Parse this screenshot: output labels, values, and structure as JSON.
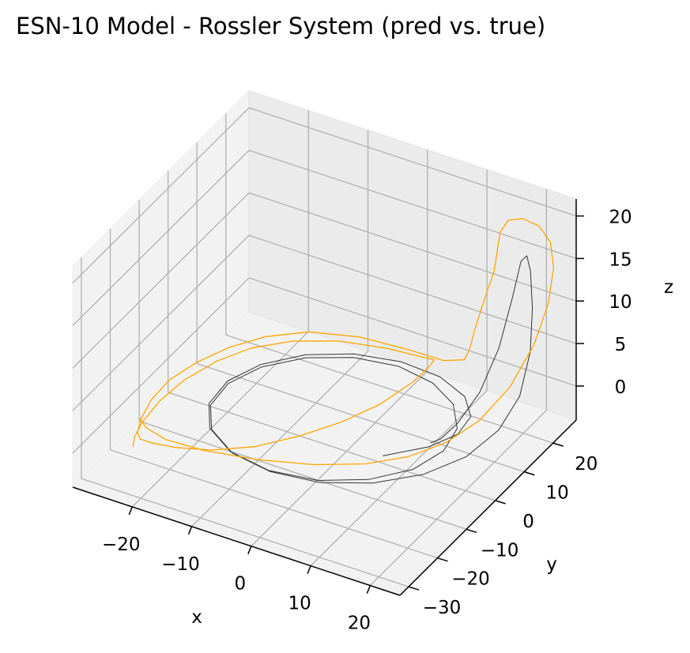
{
  "chart_data": {
    "type": "line3d",
    "title": "ESN-10 Model - Rossler System (pred vs. true)",
    "xlabel": "x",
    "ylabel": "y",
    "zlabel": "z",
    "xlim": [
      -30,
      25
    ],
    "ylim": [
      -33,
      28
    ],
    "zlim": [
      -4,
      22
    ],
    "xticks": [
      -20,
      -10,
      0,
      10,
      20
    ],
    "xtick_labels": [
      "−20",
      "−10",
      "0",
      "10",
      "20"
    ],
    "yticks": [
      -30,
      -20,
      -10,
      0,
      10,
      20
    ],
    "ytick_labels": [
      "−30",
      "−20",
      "−10",
      "0",
      "10",
      "20"
    ],
    "zticks": [
      0,
      5,
      10,
      15,
      20
    ],
    "ztick_labels": [
      "0",
      "5",
      "10",
      "15",
      "20"
    ],
    "grid": true,
    "series": [
      {
        "role": "true",
        "color": "#333333",
        "points": [
          [
            10.0,
            -8.0,
            0.5
          ],
          [
            14.6,
            -1.4,
            0.4
          ],
          [
            16.5,
            4.5,
            0.3
          ],
          [
            15.8,
            10.5,
            0.2
          ],
          [
            12.4,
            15.4,
            0.1
          ],
          [
            6.8,
            18.4,
            0.1
          ],
          [
            0.0,
            19.0,
            0.1
          ],
          [
            -7.0,
            17.0,
            0.1
          ],
          [
            -13.0,
            12.6,
            0.1
          ],
          [
            -17.4,
            6.2,
            0.1
          ],
          [
            -19.5,
            -1.0,
            0.1
          ],
          [
            -19.0,
            -8.5,
            0.1
          ],
          [
            -15.8,
            -14.8,
            0.1
          ],
          [
            -10.2,
            -19.2,
            0.1
          ],
          [
            -3.0,
            -20.8,
            0.1
          ],
          [
            4.6,
            -19.4,
            0.2
          ],
          [
            11.0,
            -15.0,
            0.3
          ],
          [
            15.3,
            -8.5,
            0.3
          ],
          [
            16.8,
            -1.0,
            0.3
          ],
          [
            15.6,
            6.2,
            0.2
          ],
          [
            12.0,
            12.2,
            0.2
          ],
          [
            6.6,
            16.2,
            0.1
          ],
          [
            0.2,
            17.6,
            0.1
          ],
          [
            -6.6,
            16.0,
            0.1
          ],
          [
            -12.6,
            11.8,
            0.1
          ],
          [
            -17.0,
            5.6,
            0.1
          ],
          [
            -19.1,
            -1.6,
            0.1
          ],
          [
            -18.6,
            -8.8,
            0.1
          ],
          [
            -15.4,
            -15.0,
            0.1
          ],
          [
            -9.8,
            -19.4,
            0.1
          ],
          [
            -2.6,
            -21.2,
            0.2
          ],
          [
            5.2,
            -20.0,
            0.3
          ],
          [
            12.2,
            -16.0,
            0.5
          ],
          [
            17.8,
            -10.0,
            0.8
          ],
          [
            21.5,
            -2.8,
            1.3
          ],
          [
            23.4,
            4.5,
            2.4
          ],
          [
            24.0,
            10.5,
            4.5
          ],
          [
            23.5,
            15.2,
            8.0
          ],
          [
            22.5,
            18.0,
            12.0
          ],
          [
            21.4,
            19.6,
            15.5
          ],
          [
            20.6,
            20.0,
            17.0
          ],
          [
            20.0,
            19.2,
            16.5
          ],
          [
            19.8,
            16.6,
            13.0
          ],
          [
            19.6,
            12.4,
            8.5
          ],
          [
            19.0,
            7.0,
            5.0
          ],
          [
            18.0,
            1.5,
            3.0
          ],
          [
            17.0,
            -2.4,
            2.2
          ],
          [
            16.0,
            -3.8,
            2.0
          ]
        ]
      },
      {
        "role": "pred",
        "color": "#ffa500",
        "points": [
          [
            -26.0,
            -18.0,
            0.0
          ],
          [
            -24.0,
            -20.0,
            0.0
          ],
          [
            -20.0,
            -21.4,
            0.0
          ],
          [
            -14.0,
            -21.0,
            0.0
          ],
          [
            -6.0,
            -18.8,
            0.0
          ],
          [
            2.0,
            -15.4,
            0.1
          ],
          [
            8.6,
            -11.2,
            0.3
          ],
          [
            13.6,
            -6.4,
            0.7
          ],
          [
            17.4,
            -1.2,
            1.5
          ],
          [
            20.4,
            4.0,
            3.0
          ],
          [
            22.8,
            9.6,
            5.6
          ],
          [
            24.4,
            14.6,
            9.2
          ],
          [
            25.0,
            18.4,
            13.0
          ],
          [
            24.6,
            21.0,
            16.2
          ],
          [
            23.4,
            22.4,
            18.4
          ],
          [
            21.4,
            22.6,
            19.8
          ],
          [
            19.0,
            21.8,
            20.4
          ],
          [
            17.2,
            20.6,
            20.2
          ],
          [
            16.6,
            19.0,
            19.2
          ],
          [
            16.8,
            17.8,
            18.0
          ],
          [
            17.2,
            16.4,
            17.2
          ],
          [
            17.6,
            14.8,
            16.2
          ],
          [
            17.2,
            13.4,
            14.4
          ],
          [
            16.4,
            12.6,
            12.0
          ],
          [
            15.4,
            12.6,
            9.5
          ],
          [
            14.4,
            13.0,
            7.0
          ],
          [
            13.4,
            13.2,
            5.4
          ],
          [
            10.0,
            13.0,
            4.6
          ],
          [
            4.0,
            13.5,
            4.3
          ],
          [
            -4.0,
            12.8,
            4.2
          ],
          [
            -11.0,
            9.8,
            4.2
          ],
          [
            -16.0,
            5.0,
            4.1
          ],
          [
            -19.4,
            -0.8,
            4.0
          ],
          [
            -22.0,
            -6.6,
            3.6
          ],
          [
            -24.4,
            -11.0,
            2.5
          ],
          [
            -26.0,
            -14.0,
            0.8
          ],
          [
            -26.6,
            -16.4,
            -0.8
          ],
          [
            -26.2,
            -18.4,
            -1.6
          ],
          [
            -24.6,
            -20.8,
            -1.2
          ],
          [
            -22.0,
            -22.4,
            -0.5
          ],
          [
            -18.0,
            -22.2,
            -0.2
          ],
          [
            -13.0,
            -20.0,
            -0.1
          ],
          [
            -8.0,
            -15.4,
            -0.1
          ],
          [
            -3.6,
            -9.0,
            0.0
          ],
          [
            0.0,
            -2.0,
            0.1
          ],
          [
            3.0,
            5.4,
            0.4
          ],
          [
            5.4,
            11.8,
            1.4
          ],
          [
            7.0,
            14.6,
            2.8
          ],
          [
            7.6,
            14.6,
            3.6
          ],
          [
            6.0,
            13.4,
            4.0
          ],
          [
            1.0,
            12.2,
            4.2
          ],
          [
            -6.0,
            10.0,
            4.2
          ],
          [
            -12.0,
            6.2,
            4.1
          ],
          [
            -16.6,
            1.2,
            3.9
          ],
          [
            -19.8,
            -4.0,
            3.4
          ],
          [
            -22.8,
            -9.0,
            2.2
          ],
          [
            -25.0,
            -13.2,
            0.6
          ],
          [
            -26.4,
            -16.6,
            -1.2
          ],
          [
            -26.4,
            -19.0,
            -2.0
          ],
          [
            -25.4,
            -21.6,
            -2.0
          ]
        ]
      }
    ]
  }
}
